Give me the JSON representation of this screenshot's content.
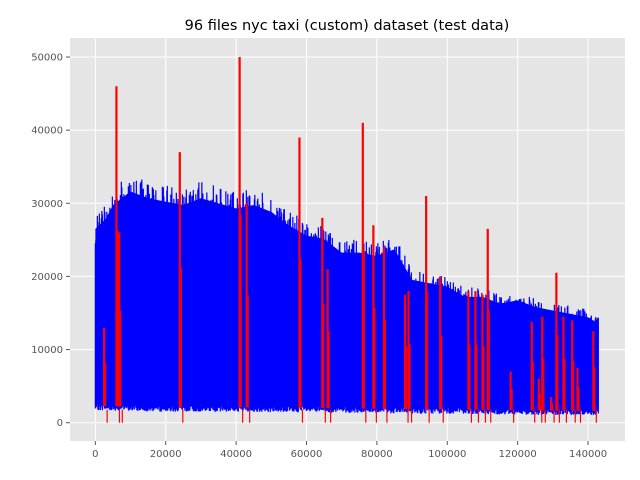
{
  "chart_data": {
    "type": "line",
    "title": "96 files nyc taxi (custom) dataset (test data)",
    "xlabel": "",
    "ylabel": "",
    "xlim": [
      -7200,
      150500
    ],
    "ylim": [
      -2500,
      52600
    ],
    "xticks": [
      0,
      20000,
      40000,
      60000,
      80000,
      100000,
      120000,
      140000
    ],
    "yticks": [
      0,
      10000,
      20000,
      30000,
      40000,
      50000
    ],
    "xtick_labels": [
      "0",
      "20000",
      "40000",
      "60000",
      "80000",
      "100000",
      "120000",
      "140000"
    ],
    "ytick_labels": [
      "0",
      "10000",
      "20000",
      "30000",
      "40000",
      "50000"
    ],
    "grid": true,
    "background": "#e5e5e5",
    "series": [
      {
        "color": "#0000ff",
        "style": "dense-oscillation",
        "x_range": [
          0,
          143000
        ],
        "lower_envelope": [
          [
            0,
            2000
          ],
          [
            10000,
            1900
          ],
          [
            20000,
            1800
          ],
          [
            40000,
            1800
          ],
          [
            60000,
            1700
          ],
          [
            80000,
            1600
          ],
          [
            100000,
            1500
          ],
          [
            120000,
            1400
          ],
          [
            143000,
            1300
          ]
        ],
        "upper_envelope": [
          [
            0,
            28500
          ],
          [
            3000,
            30000
          ],
          [
            5000,
            32000
          ],
          [
            10000,
            34000
          ],
          [
            15000,
            33000
          ],
          [
            20000,
            32500
          ],
          [
            25000,
            32000
          ],
          [
            30000,
            33000
          ],
          [
            40000,
            31500
          ],
          [
            45000,
            32000
          ],
          [
            50000,
            31000
          ],
          [
            55000,
            29000
          ],
          [
            60000,
            27500
          ],
          [
            65000,
            27000
          ],
          [
            70000,
            25000
          ],
          [
            75000,
            25000
          ],
          [
            80000,
            24500
          ],
          [
            85000,
            25500
          ],
          [
            90000,
            21000
          ],
          [
            95000,
            20500
          ],
          [
            100000,
            20000
          ],
          [
            105000,
            18500
          ],
          [
            110000,
            18500
          ],
          [
            115000,
            17500
          ],
          [
            120000,
            18000
          ],
          [
            125000,
            17000
          ],
          [
            130000,
            16500
          ],
          [
            135000,
            16000
          ],
          [
            140000,
            15500
          ],
          [
            143000,
            14500
          ]
        ]
      },
      {
        "color": "#ff0000",
        "style": "spikes",
        "spikes": [
          [
            2500,
            13000
          ],
          [
            6000,
            46000
          ],
          [
            6800,
            26000
          ],
          [
            24000,
            37000
          ],
          [
            41000,
            50000
          ],
          [
            43000,
            30000
          ],
          [
            58000,
            39000
          ],
          [
            64500,
            28000
          ],
          [
            66000,
            21000
          ],
          [
            76000,
            41000
          ],
          [
            79000,
            27000
          ],
          [
            82000,
            24000
          ],
          [
            88000,
            17500
          ],
          [
            89000,
            18000
          ],
          [
            94000,
            31000
          ],
          [
            98000,
            20000
          ],
          [
            106000,
            18000
          ],
          [
            108000,
            18000
          ],
          [
            110000,
            17500
          ],
          [
            111500,
            26500
          ],
          [
            118000,
            7000
          ],
          [
            124000,
            13800
          ],
          [
            126000,
            6000
          ],
          [
            127000,
            14500
          ],
          [
            129500,
            3500
          ],
          [
            131000,
            20500
          ],
          [
            133000,
            14500
          ],
          [
            135500,
            14000
          ],
          [
            137000,
            7500
          ],
          [
            141500,
            12500
          ]
        ]
      }
    ]
  }
}
